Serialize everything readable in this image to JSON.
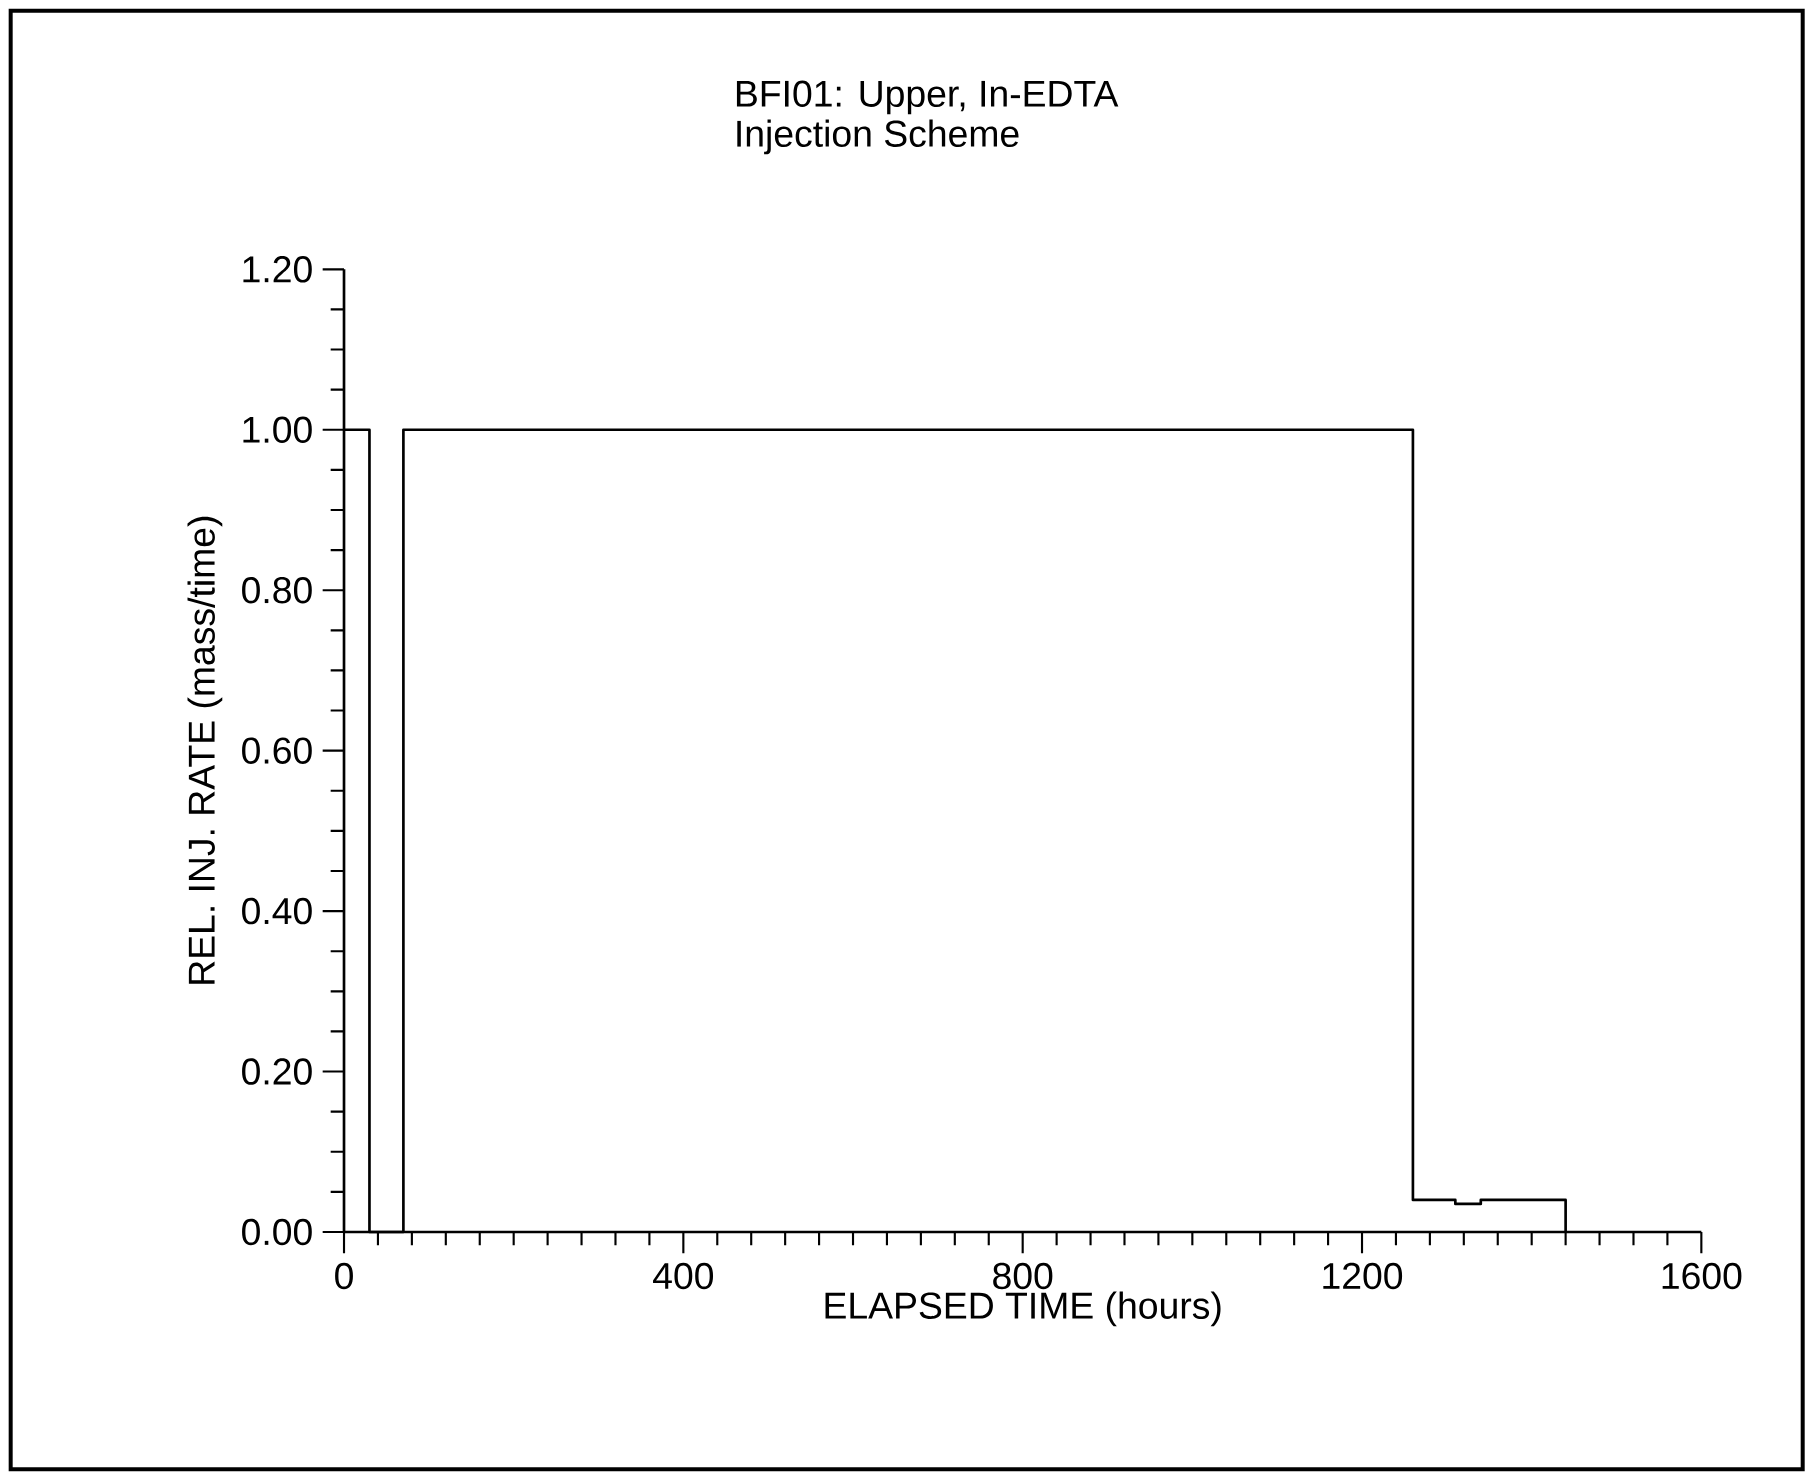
{
  "chart_data": {
    "type": "step",
    "title": "BFI01: Upper, In-EDTA",
    "subtitle": "Injection Scheme",
    "xlabel": "ELAPSED TIME    (hours)",
    "ylabel": "REL. INJ. RATE    (mass/time)",
    "x": [
      0,
      30,
      70,
      1260,
      1310,
      1340,
      1440
    ],
    "values": [
      1.0,
      0.0,
      1.0,
      0.04,
      0.035,
      0.04,
      0.0
    ],
    "color": "#000000",
    "xlim": [
      0,
      1600
    ],
    "ylim": [
      0,
      1.2
    ],
    "xticks": [
      0,
      400,
      800,
      1200,
      1600
    ],
    "yticks": [
      {
        "value": 0,
        "label": "0.00"
      },
      {
        "value": 0.2,
        "label": "0.20"
      },
      {
        "value": 0.4,
        "label": "0.40"
      },
      {
        "value": 0.6,
        "label": "0.60"
      },
      {
        "value": 0.8,
        "label": "0.80"
      },
      {
        "value": 1.0,
        "label": "1.00"
      },
      {
        "value": 1.2,
        "label": "1.20"
      }
    ],
    "grid": false
  }
}
